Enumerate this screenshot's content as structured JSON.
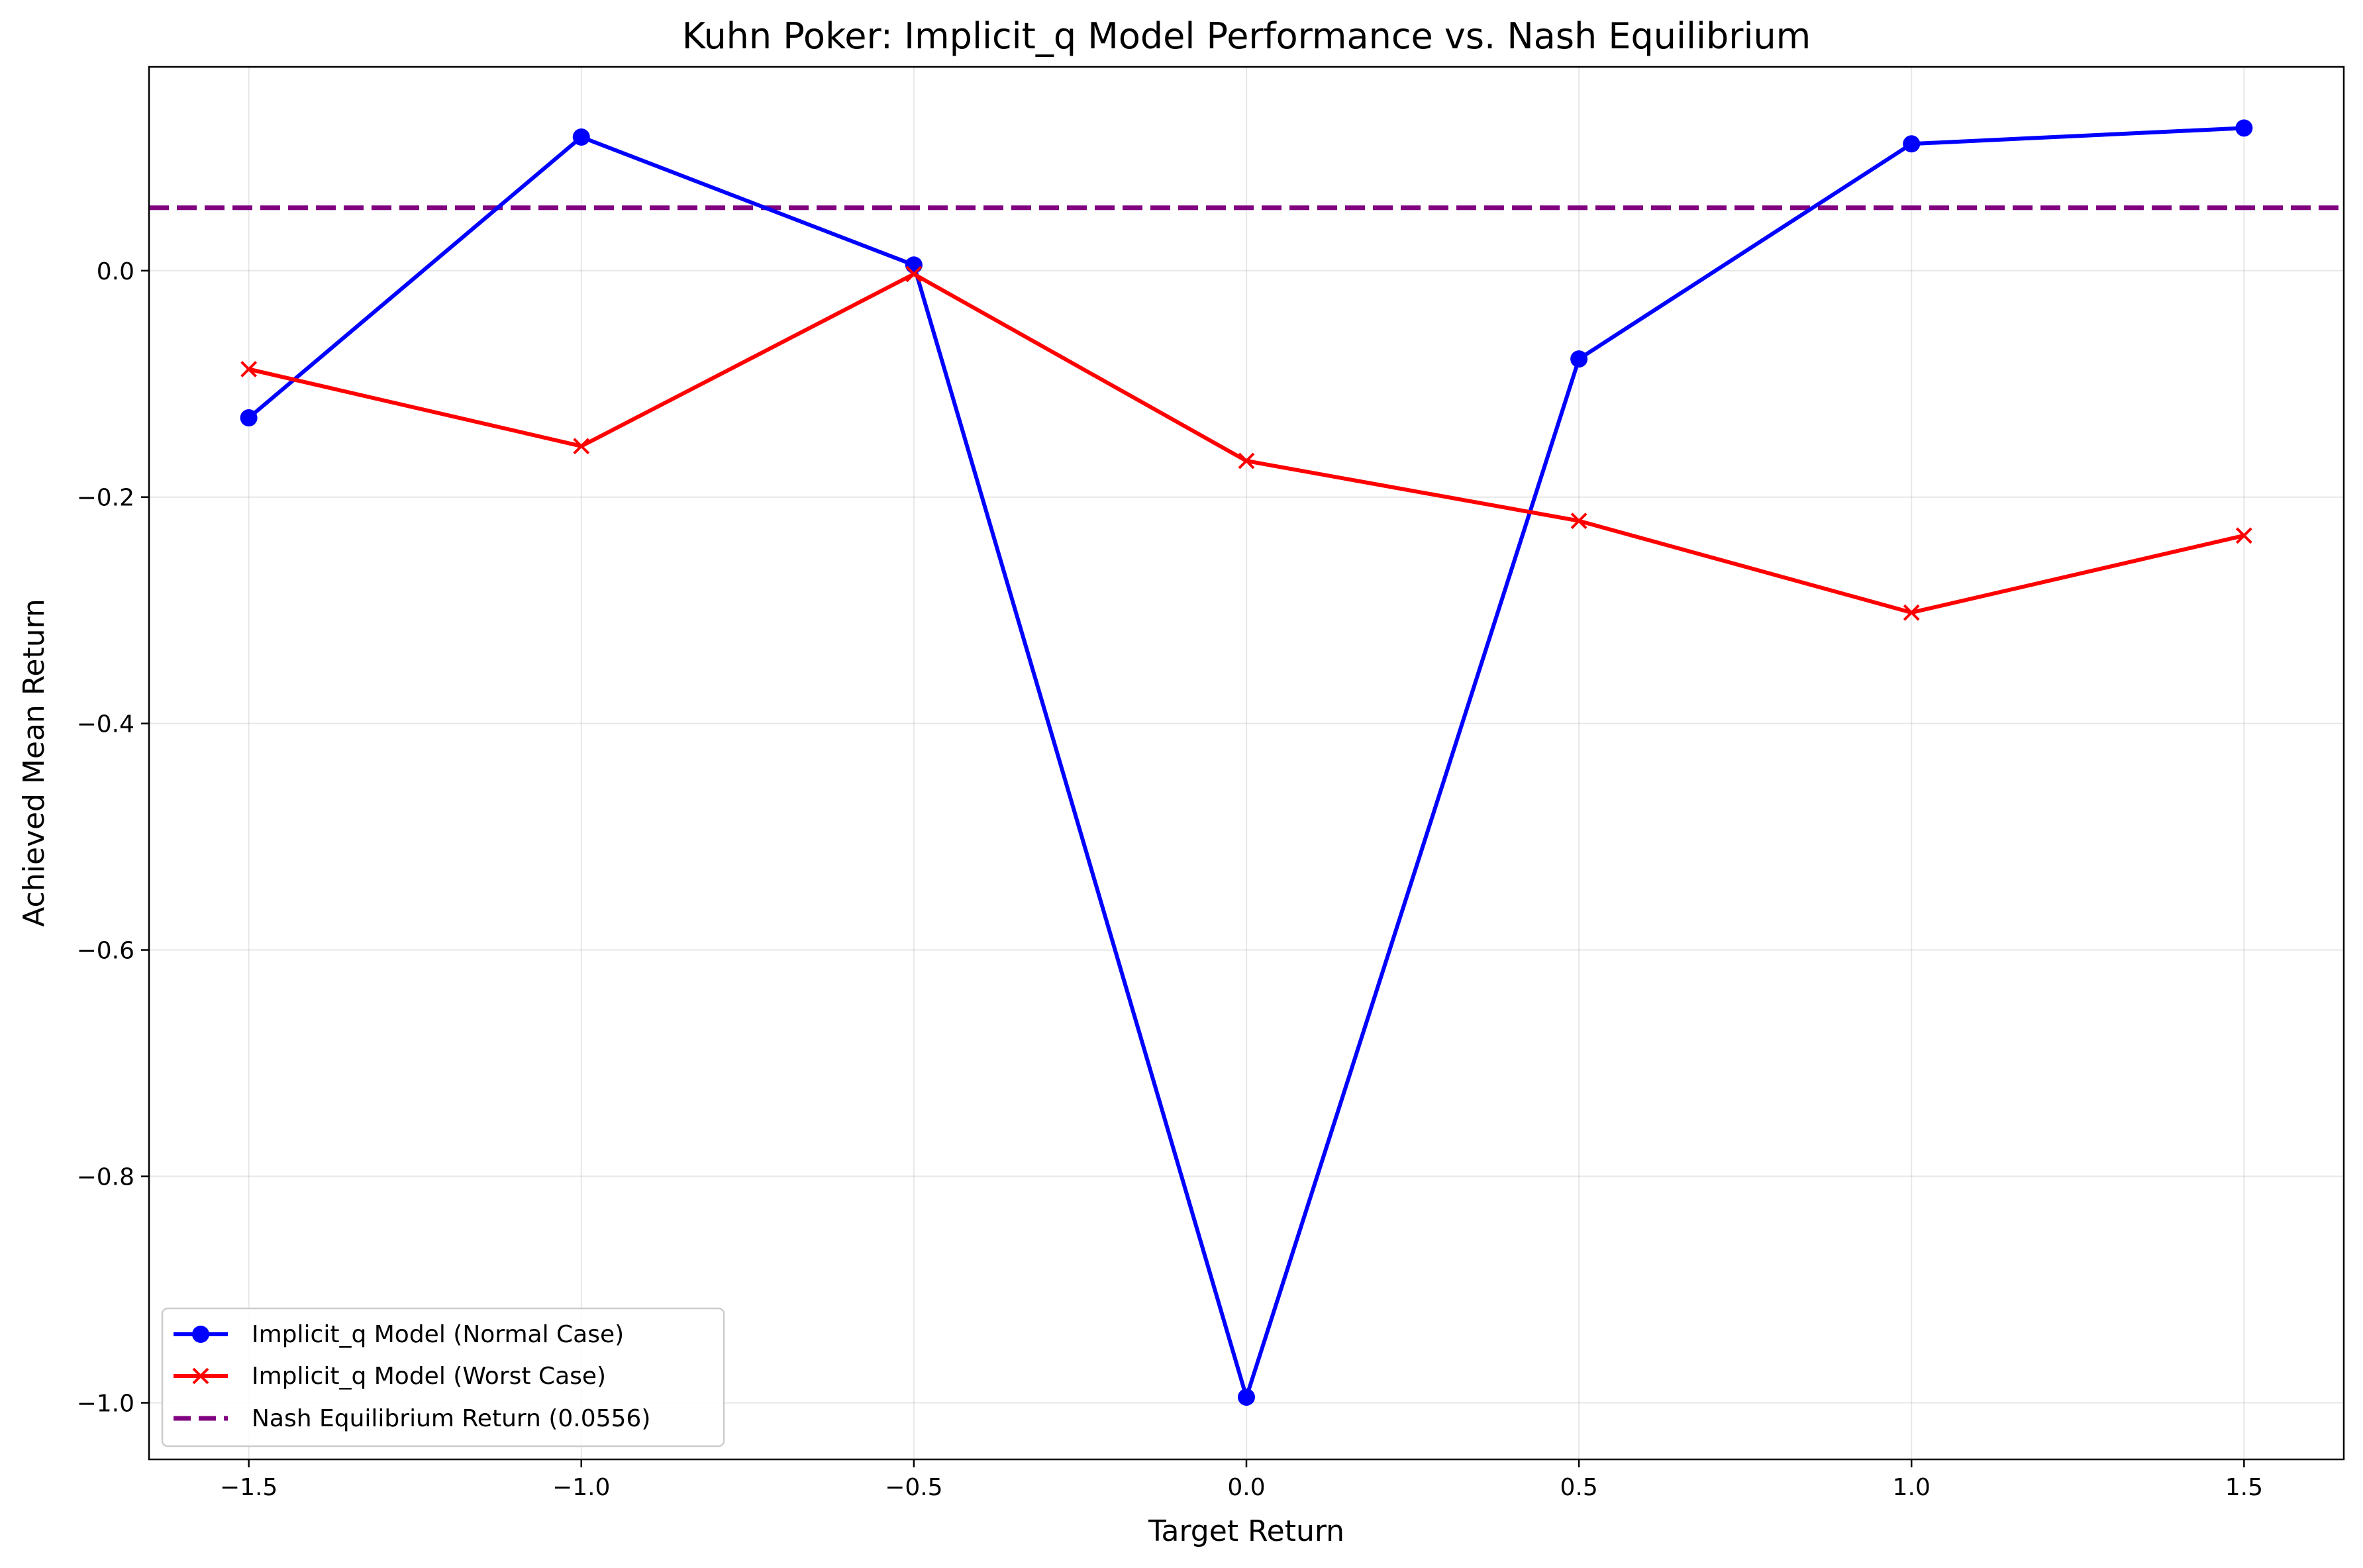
{
  "chart_data": {
    "type": "line",
    "title": "Kuhn Poker: Implicit_q Model Performance vs. Nash Equilibrium",
    "xlabel": "Target Return",
    "ylabel": "Achieved Mean Return",
    "x": [
      -1.5,
      -1.0,
      -0.5,
      0.0,
      0.5,
      1.0,
      1.5
    ],
    "xlim": [
      -1.65,
      1.65
    ],
    "ylim": [
      -1.05,
      0.18
    ],
    "xticks": [
      -1.5,
      -1.0,
      -0.5,
      0.0,
      0.5,
      1.0,
      1.5
    ],
    "xtick_labels": [
      "−1.5",
      "−1.0",
      "−0.5",
      "0.0",
      "0.5",
      "1.0",
      "1.5"
    ],
    "yticks": [
      0.0,
      -0.2,
      -0.4,
      -0.6,
      -0.8,
      -1.0
    ],
    "ytick_labels": [
      "0.0",
      "−0.2",
      "−0.4",
      "−0.6",
      "−0.8",
      "−1.0"
    ],
    "grid": true,
    "legend_position": "lower-left",
    "series": [
      {
        "name": "Implicit_q Model (Normal Case)",
        "color": "#0000ff",
        "marker": "circle",
        "values": [
          -0.13,
          0.118,
          0.005,
          -0.995,
          -0.078,
          0.112,
          0.126
        ]
      },
      {
        "name": "Implicit_q Model (Worst Case)",
        "color": "#ff0000",
        "marker": "x",
        "values": [
          -0.087,
          -0.155,
          -0.003,
          -0.168,
          -0.221,
          -0.302,
          -0.234
        ]
      }
    ],
    "reference_lines": [
      {
        "name": "Nash Equilibrium Return (0.0556)",
        "color": "#800080",
        "style": "dashed",
        "y": 0.0556
      }
    ]
  }
}
